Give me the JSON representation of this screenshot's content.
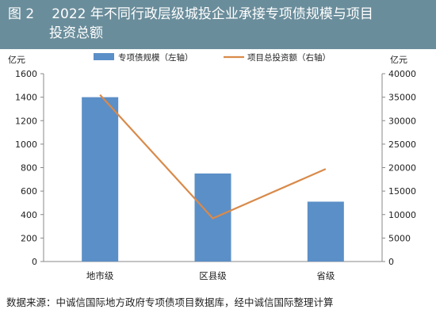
{
  "header": {
    "figure_label": "图 2",
    "title_line1": "2022 年不同行政层级城投企业承接专项债规模与项目",
    "title_line2": "投资总额"
  },
  "source_note": "数据来源：中诚信国际地方政府专项债项目数据库，经中诚信国际整理计算",
  "colors": {
    "header_bg": "#6a8d9b",
    "bar": "#5b8fc7",
    "line": "#d98a4a",
    "axis": "#888888"
  },
  "chart_data": {
    "type": "bar",
    "categories": [
      "地市级",
      "区县级",
      "省级"
    ],
    "series": [
      {
        "name": "专项债规模（左轴）",
        "type": "bar",
        "axis": "left",
        "values": [
          1400,
          750,
          510
        ]
      },
      {
        "name": "项目总投资额（右轴）",
        "type": "line",
        "axis": "right",
        "values": [
          35500,
          9200,
          19700
        ]
      }
    ],
    "left_axis": {
      "unit": "亿元",
      "range": [
        0,
        1600
      ],
      "ticks": [
        "0",
        "200",
        "400",
        "600",
        "800",
        "1000",
        "1200",
        "1400",
        "1600"
      ]
    },
    "right_axis": {
      "unit": "亿元",
      "range": [
        0,
        40000
      ],
      "ticks": [
        "0",
        "5000",
        "10000",
        "15000",
        "20000",
        "25000",
        "30000",
        "35000",
        "40000"
      ]
    },
    "legend_position": "top",
    "grid": false
  }
}
